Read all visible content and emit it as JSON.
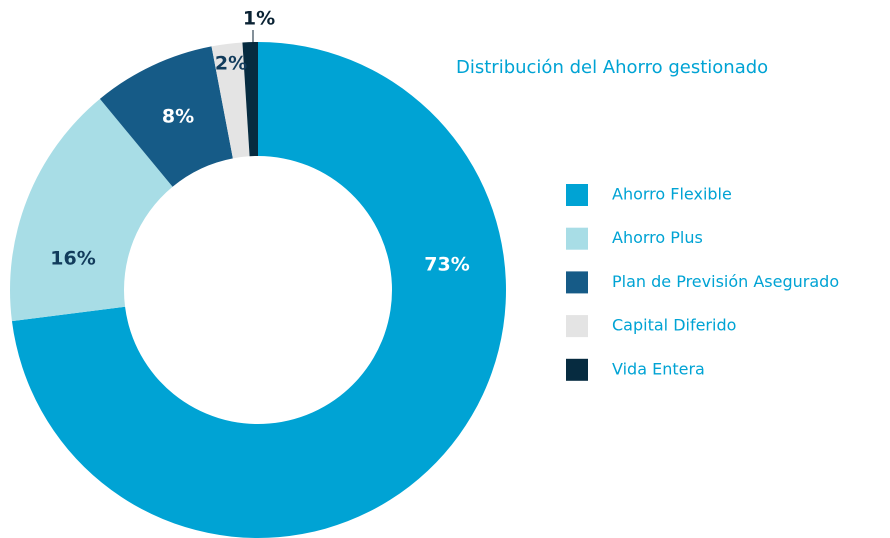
{
  "chart_data": {
    "type": "donut",
    "title": "Distribución del Ahorro gestionado",
    "categories": [
      "Ahorro Flexible",
      "Ahorro Plus",
      "Plan de Previsión Asegurado",
      "Capital Diferido",
      "Vida Entera"
    ],
    "values": [
      73,
      16,
      8,
      2,
      1
    ],
    "value_labels": [
      "73%",
      "16%",
      "8%",
      "2%",
      "1%"
    ],
    "colors": [
      "#00a3d4",
      "#a8dde6",
      "#165b87",
      "#e4e4e4",
      "#062b40"
    ],
    "legend": "right"
  }
}
